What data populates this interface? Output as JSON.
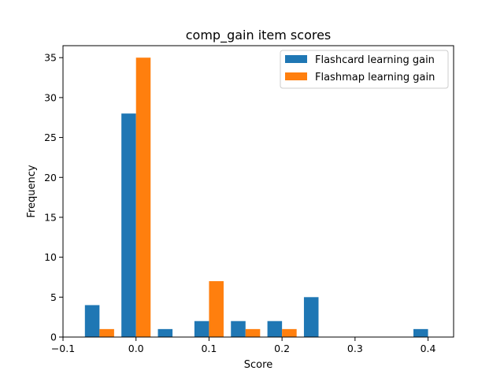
{
  "chart_data": {
    "type": "bar",
    "title": "comp_gain item scores",
    "xlabel": "Score",
    "ylabel": "Frequency",
    "xlim": [
      -0.1,
      0.435
    ],
    "ylim": [
      0,
      36.5
    ],
    "xticks": [
      -0.1,
      0.0,
      0.1,
      0.2,
      0.3,
      0.4
    ],
    "xtick_labels": [
      "−0.1",
      "0.0",
      "0.1",
      "0.2",
      "0.3",
      "0.4"
    ],
    "yticks": [
      0,
      5,
      10,
      15,
      20,
      25,
      30,
      35
    ],
    "ytick_labels": [
      "0",
      "5",
      "10",
      "15",
      "20",
      "25",
      "30",
      "35"
    ],
    "bin_edges": [
      -0.075,
      -0.025,
      0.025,
      0.075,
      0.125,
      0.175,
      0.225,
      0.275,
      0.325,
      0.375,
      0.425
    ],
    "legend_position": "upper-right",
    "series": [
      {
        "name": "Flashcard learning gain",
        "color": "#1f77b4",
        "values": [
          4,
          28,
          1,
          2,
          2,
          2,
          5,
          0,
          0,
          1
        ]
      },
      {
        "name": "Flashmap learning gain",
        "color": "#ff7f0e",
        "values": [
          1,
          35,
          0,
          7,
          1,
          1,
          0,
          0,
          0,
          0
        ]
      }
    ]
  }
}
